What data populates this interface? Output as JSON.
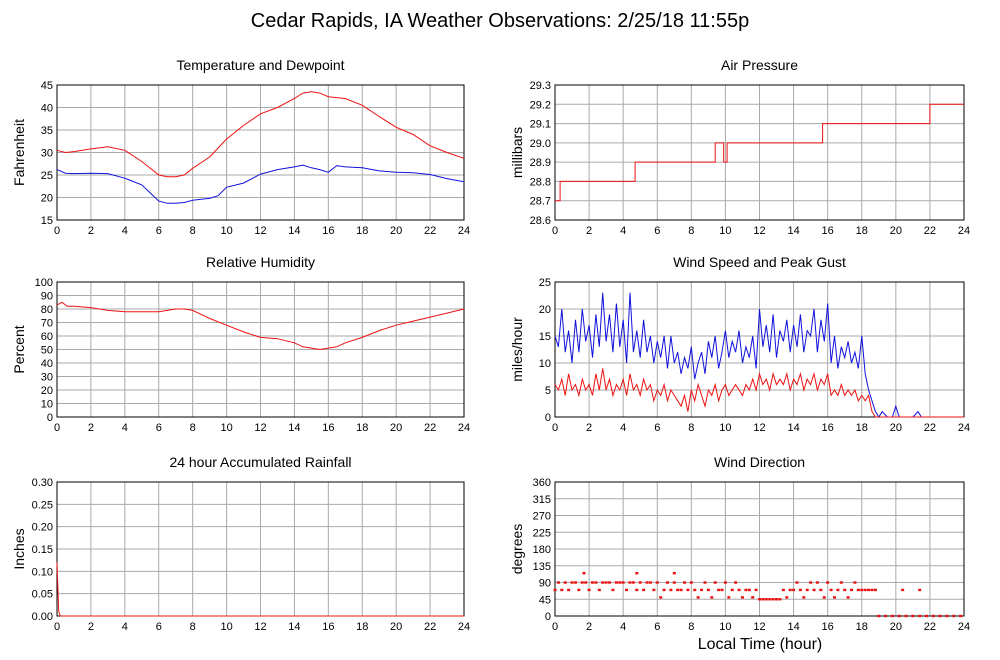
{
  "title": "Cedar Rapids, IA Weather Observations: 2/25/18 11:55p",
  "xlabel": "Local Time (hour)",
  "colors": {
    "red": "#ee1111",
    "blue": "#1111dd",
    "grid": "#aaaaaa"
  },
  "chart_data": [
    {
      "type": "line",
      "title": "Temperature and Dewpoint",
      "ylabel": "Fahrenheit",
      "xlim": [
        0,
        24
      ],
      "ylim": [
        15,
        45
      ],
      "xticks": [
        0,
        2,
        4,
        6,
        8,
        10,
        12,
        14,
        16,
        18,
        20,
        22,
        24
      ],
      "yticks": [
        15,
        20,
        25,
        30,
        35,
        40,
        45
      ],
      "grid": true,
      "series": [
        {
          "color": "#ee1111",
          "x": [
            0,
            0.5,
            1,
            2,
            3,
            4,
            5,
            6,
            6.5,
            7,
            7.5,
            8,
            9,
            10,
            11,
            12,
            13,
            14,
            14.5,
            15,
            15.5,
            16,
            17,
            18,
            19,
            20,
            21,
            22,
            23,
            24
          ],
          "y": [
            30.5,
            30,
            30.2,
            30.8,
            31.3,
            30.5,
            28,
            25,
            24.6,
            24.6,
            25,
            26.5,
            29,
            33,
            36,
            38.6,
            40,
            42,
            43.2,
            43.5,
            43.2,
            42.4,
            42,
            40.5,
            38,
            35.6,
            34,
            31.5,
            30,
            28.7
          ]
        },
        {
          "color": "#1111dd",
          "x": [
            0,
            0.5,
            1,
            2,
            3,
            4,
            5,
            5.5,
            6,
            6.5,
            7,
            7.5,
            8,
            8.5,
            9,
            9.5,
            10,
            11,
            12,
            13,
            14,
            14.5,
            15,
            15.5,
            16,
            16.5,
            17,
            18,
            19,
            20,
            21,
            22,
            23,
            24
          ],
          "y": [
            26.2,
            25.4,
            25.3,
            25.4,
            25.3,
            24.3,
            22.8,
            21,
            19.2,
            18.7,
            18.7,
            18.9,
            19.4,
            19.6,
            19.8,
            20.4,
            22.3,
            23.2,
            25.2,
            26.2,
            26.8,
            27.2,
            26.6,
            26.2,
            25.6,
            27.1,
            26.8,
            26.6,
            25.9,
            25.6,
            25.5,
            25.1,
            24.2,
            23.5
          ]
        }
      ]
    },
    {
      "type": "line",
      "title": "Air Pressure",
      "ylabel": "millibars",
      "xlim": [
        0,
        24
      ],
      "ylim": [
        28.6,
        29.3
      ],
      "xticks": [
        0,
        2,
        4,
        6,
        8,
        10,
        12,
        14,
        16,
        18,
        20,
        22,
        24
      ],
      "yticks": [
        28.6,
        28.7,
        28.8,
        28.9,
        29.0,
        29.1,
        29.2,
        29.3
      ],
      "grid": true,
      "series": [
        {
          "color": "#ee1111",
          "step": true,
          "x": [
            0,
            0.3,
            4.7,
            9.4,
            9.9,
            10.1,
            15.7,
            22,
            24
          ],
          "y": [
            28.7,
            28.8,
            28.9,
            29.0,
            28.9,
            29.0,
            29.1,
            29.2,
            29.2
          ]
        }
      ]
    },
    {
      "type": "line",
      "title": "Relative Humidity",
      "ylabel": "Percent",
      "xlim": [
        0,
        24
      ],
      "ylim": [
        0,
        100
      ],
      "xticks": [
        0,
        2,
        4,
        6,
        8,
        10,
        12,
        14,
        16,
        18,
        20,
        22,
        24
      ],
      "yticks": [
        0,
        10,
        20,
        30,
        40,
        50,
        60,
        70,
        80,
        90,
        100
      ],
      "grid": true,
      "series": [
        {
          "color": "#ee1111",
          "x": [
            0,
            0.3,
            0.6,
            1,
            2,
            3,
            4,
            5,
            6,
            7,
            7.5,
            8,
            9,
            10,
            11,
            12,
            13,
            14,
            14.5,
            15,
            15.5,
            16,
            16.5,
            17,
            18,
            19,
            20,
            21,
            22,
            23,
            24
          ],
          "y": [
            83,
            85,
            82,
            82,
            81,
            79,
            78,
            78,
            78,
            80,
            80,
            79,
            73,
            68,
            63,
            59,
            58,
            55,
            52,
            51,
            50,
            51,
            52,
            55,
            59,
            64,
            68,
            71,
            74,
            77,
            80
          ]
        }
      ]
    },
    {
      "type": "line",
      "title": "Wind Speed and Peak Gust",
      "ylabel": "miles/hour",
      "xlim": [
        0,
        24
      ],
      "ylim": [
        0,
        25
      ],
      "xticks": [
        0,
        2,
        4,
        6,
        8,
        10,
        12,
        14,
        16,
        18,
        20,
        22,
        24
      ],
      "yticks": [
        0,
        5,
        10,
        15,
        20,
        25
      ],
      "grid": true,
      "series": [
        {
          "color": "#1111dd",
          "x": [
            0,
            0.2,
            0.4,
            0.6,
            0.8,
            1,
            1.2,
            1.4,
            1.6,
            1.8,
            2,
            2.2,
            2.4,
            2.6,
            2.8,
            3,
            3.2,
            3.4,
            3.6,
            3.8,
            4,
            4.2,
            4.4,
            4.6,
            4.8,
            5,
            5.2,
            5.4,
            5.6,
            5.8,
            6,
            6.2,
            6.4,
            6.6,
            6.8,
            7,
            7.2,
            7.4,
            7.6,
            7.8,
            8,
            8.2,
            8.4,
            8.6,
            8.8,
            9,
            9.2,
            9.4,
            9.6,
            9.8,
            10,
            10.2,
            10.4,
            10.6,
            10.8,
            11,
            11.2,
            11.4,
            11.6,
            11.8,
            12,
            12.2,
            12.4,
            12.6,
            12.8,
            13,
            13.2,
            13.4,
            13.6,
            13.8,
            14,
            14.2,
            14.4,
            14.6,
            14.8,
            15,
            15.2,
            15.4,
            15.6,
            15.8,
            16,
            16.2,
            16.4,
            16.6,
            16.8,
            17,
            17.2,
            17.4,
            17.6,
            17.8,
            18,
            18.2,
            18.4,
            18.6,
            18.8,
            19,
            19.2,
            19.5,
            19.8,
            20,
            20.2,
            20.4,
            20.6,
            21,
            21.3,
            21.5,
            21.7,
            22,
            24
          ],
          "y": [
            15,
            13,
            20,
            12,
            16,
            10,
            18,
            12,
            20,
            14,
            17,
            11,
            19,
            13,
            23,
            14,
            19,
            12,
            21,
            13,
            18,
            10,
            23,
            12,
            16,
            11,
            18,
            12,
            15,
            10,
            14,
            11,
            15,
            9,
            15,
            10,
            12,
            8,
            11,
            9,
            13,
            7,
            10,
            12,
            8,
            14,
            11,
            15,
            9,
            12,
            16,
            11,
            14,
            12,
            16,
            10,
            13,
            11,
            15,
            9,
            20,
            13,
            17,
            12,
            19,
            11,
            16,
            14,
            18,
            12,
            17,
            13,
            19,
            12,
            16,
            15,
            20,
            12,
            18,
            14,
            21,
            10,
            15,
            9,
            13,
            11,
            14,
            10,
            12,
            9,
            15,
            8,
            5,
            3,
            1,
            0,
            1,
            0,
            0,
            2,
            0,
            0,
            0,
            0,
            1,
            0,
            0,
            0,
            0
          ]
        },
        {
          "color": "#ee1111",
          "x": [
            0,
            0.2,
            0.4,
            0.6,
            0.8,
            1,
            1.2,
            1.4,
            1.6,
            1.8,
            2,
            2.2,
            2.4,
            2.6,
            2.8,
            3,
            3.2,
            3.4,
            3.6,
            3.8,
            4,
            4.2,
            4.4,
            4.6,
            4.8,
            5,
            5.2,
            5.4,
            5.6,
            5.8,
            6,
            6.2,
            6.4,
            6.6,
            6.8,
            7,
            7.2,
            7.4,
            7.6,
            7.8,
            8,
            8.2,
            8.4,
            8.6,
            8.8,
            9,
            9.2,
            9.4,
            9.6,
            9.8,
            10,
            10.2,
            10.4,
            10.6,
            10.8,
            11,
            11.2,
            11.4,
            11.6,
            11.8,
            12,
            12.2,
            12.4,
            12.6,
            12.8,
            13,
            13.2,
            13.4,
            13.6,
            13.8,
            14,
            14.2,
            14.4,
            14.6,
            14.8,
            15,
            15.2,
            15.4,
            15.6,
            15.8,
            16,
            16.2,
            16.4,
            16.6,
            16.8,
            17,
            17.2,
            17.4,
            17.6,
            17.8,
            18,
            18.2,
            18.4,
            18.6,
            18.8,
            19,
            24
          ],
          "y": [
            6,
            5,
            7,
            4,
            8,
            5,
            6,
            4,
            7,
            5,
            6,
            4,
            8,
            5,
            9,
            5,
            7,
            4,
            6,
            5,
            7,
            4,
            8,
            5,
            6,
            4,
            7,
            5,
            6,
            3,
            5,
            4,
            6,
            3,
            5,
            4,
            3,
            2,
            4,
            1,
            5,
            3,
            6,
            4,
            2,
            5,
            4,
            6,
            3,
            5,
            6,
            4,
            5,
            6,
            5,
            4,
            6,
            5,
            7,
            5,
            8,
            6,
            7,
            5,
            8,
            6,
            7,
            6,
            8,
            5,
            7,
            6,
            8,
            5,
            7,
            6,
            8,
            5,
            7,
            6,
            8,
            4,
            5,
            4,
            6,
            4,
            5,
            4,
            5,
            3,
            4,
            3,
            4,
            1,
            0,
            0,
            0
          ]
        }
      ]
    },
    {
      "type": "line",
      "title": "24 hour Accumulated Rainfall",
      "ylabel": "Inches",
      "xlim": [
        0,
        24
      ],
      "ylim": [
        0,
        0.3
      ],
      "xticks": [
        0,
        2,
        4,
        6,
        8,
        10,
        12,
        14,
        16,
        18,
        20,
        22,
        24
      ],
      "yticks": [
        0.0,
        0.05,
        0.1,
        0.15,
        0.2,
        0.25,
        0.3
      ],
      "grid": true,
      "series": [
        {
          "color": "#ee1111",
          "x": [
            0,
            0.1,
            0.2,
            24
          ],
          "y": [
            0.12,
            0.01,
            0,
            0
          ]
        }
      ]
    },
    {
      "type": "scatter",
      "title": "Wind Direction",
      "ylabel": "degrees",
      "xlim": [
        0,
        24
      ],
      "ylim": [
        0,
        360
      ],
      "xticks": [
        0,
        2,
        4,
        6,
        8,
        10,
        12,
        14,
        16,
        18,
        20,
        22,
        24
      ],
      "yticks": [
        0,
        45,
        90,
        135,
        180,
        225,
        270,
        315,
        360
      ],
      "grid": true,
      "series": [
        {
          "color": "#ee1111",
          "x": [
            0,
            0.2,
            0.4,
            0.6,
            0.8,
            1,
            1.2,
            1.4,
            1.6,
            1.8,
            2,
            2.2,
            2.4,
            2.6,
            2.8,
            3,
            3.2,
            3.4,
            3.6,
            3.8,
            4,
            4.2,
            4.4,
            4.6,
            4.8,
            5,
            5.2,
            5.4,
            5.6,
            5.8,
            6,
            6.2,
            6.4,
            6.6,
            6.8,
            7,
            7.2,
            7.4,
            7.6,
            7.8,
            8,
            8.2,
            8.4,
            8.6,
            8.8,
            9,
            9.2,
            9.4,
            9.6,
            9.8,
            10,
            10.2,
            10.4,
            10.6,
            10.8,
            11,
            11.2,
            11.4,
            11.6,
            11.8,
            12,
            12.2,
            12.4,
            12.6,
            12.8,
            13,
            13.2,
            13.4,
            13.6,
            13.8,
            14,
            14.2,
            14.4,
            14.6,
            14.8,
            15,
            15.2,
            15.4,
            15.6,
            15.8,
            16,
            16.2,
            16.4,
            16.6,
            16.8,
            17,
            17.2,
            17.4,
            17.6,
            17.8,
            18,
            18.2,
            18.4,
            18.6,
            18.8,
            19,
            19.4,
            19.8,
            20.2,
            20.6,
            21,
            21.4,
            21.8,
            22.2,
            22.6,
            23,
            23.4,
            23.8,
            20.4,
            21.4,
            1.7,
            4.8,
            7
          ],
          "y": [
            70,
            90,
            70,
            90,
            70,
            90,
            90,
            70,
            90,
            90,
            70,
            90,
            90,
            70,
            90,
            90,
            90,
            70,
            90,
            90,
            90,
            70,
            90,
            90,
            70,
            90,
            70,
            90,
            90,
            70,
            90,
            50,
            70,
            90,
            70,
            90,
            70,
            70,
            90,
            70,
            90,
            70,
            50,
            70,
            90,
            70,
            50,
            90,
            70,
            70,
            90,
            50,
            70,
            90,
            70,
            50,
            70,
            70,
            50,
            70,
            45,
            45,
            45,
            45,
            45,
            45,
            45,
            70,
            50,
            70,
            70,
            90,
            70,
            50,
            70,
            90,
            70,
            90,
            70,
            50,
            90,
            70,
            50,
            70,
            90,
            70,
            50,
            70,
            90,
            70,
            70,
            70,
            70,
            70,
            70,
            0,
            0,
            0,
            0,
            0,
            0,
            0,
            0,
            0,
            0,
            0,
            0,
            0,
            70,
            70,
            115,
            115,
            115
          ]
        }
      ]
    }
  ]
}
